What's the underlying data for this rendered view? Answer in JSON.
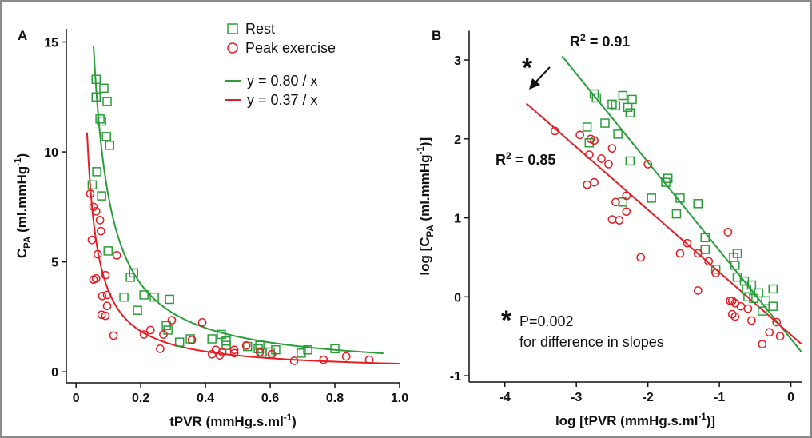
{
  "chart_data": [
    {
      "type": "scatter",
      "panel": "A",
      "xlabel": [
        {
          "text": "tPVR (mmHg.s.ml"
        },
        {
          "text": "-1",
          "shift": "sup"
        },
        {
          "text": ")"
        }
      ],
      "ylabel": [
        {
          "text": "C"
        },
        {
          "text": "PA",
          "shift": "sub"
        },
        {
          "text": " (ml.mmHg"
        },
        {
          "text": "-1",
          "shift": "sup"
        },
        {
          "text": ")"
        }
      ],
      "xlim": [
        -0.03,
        1.0
      ],
      "ylim": [
        -0.5,
        15.6
      ],
      "xticks": [
        0,
        0.2,
        0.4,
        0.6,
        0.8,
        {
          "value": 1,
          "label": "1.0"
        }
      ],
      "yticks": [
        0,
        5,
        10,
        15
      ],
      "series": [
        {
          "name": "Rest",
          "color": "#2a9d3a",
          "marker": "square",
          "x": [
            0.062,
            0.062,
            0.086,
            0.096,
            0.074,
            0.079,
            0.094,
            0.104,
            0.064,
            0.05,
            0.079,
            0.099,
            0.168,
            0.178,
            0.148,
            0.19,
            0.21,
            0.242,
            0.289,
            0.279,
            0.284,
            0.32,
            0.353,
            0.42,
            0.449,
            0.464,
            0.464,
            0.53,
            0.563,
            0.568,
            0.575,
            0.6,
            0.617,
            0.696,
            0.716,
            0.8
          ],
          "y": [
            13.3,
            12.5,
            12.9,
            12.3,
            11.5,
            11.4,
            10.7,
            10.3,
            9.1,
            8.5,
            8.0,
            5.5,
            4.3,
            4.5,
            3.4,
            2.8,
            3.5,
            3.4,
            3.3,
            2.1,
            1.9,
            1.35,
            1.5,
            1.5,
            1.7,
            1.4,
            1.2,
            1.15,
            1.05,
            1.2,
            0.9,
            0.9,
            1.0,
            0.85,
            1.0,
            1.05
          ]
        },
        {
          "name": "Peak exercise",
          "color": "#e31e24",
          "marker": "circle",
          "x": [
            0.044,
            0.054,
            0.062,
            0.049,
            0.074,
            0.077,
            0.054,
            0.062,
            0.067,
            0.091,
            0.081,
            0.096,
            0.096,
            0.079,
            0.091,
            0.116,
            0.126,
            0.21,
            0.23,
            0.26,
            0.27,
            0.296,
            0.358,
            0.39,
            0.42,
            0.432,
            0.444,
            0.452,
            0.489,
            0.489,
            0.526,
            0.568,
            0.605,
            0.674,
            0.765,
            0.835,
            0.906
          ],
          "y": [
            8.1,
            7.5,
            7.3,
            6.0,
            6.9,
            6.4,
            4.2,
            4.25,
            5.35,
            4.4,
            3.45,
            3.5,
            3.0,
            2.6,
            2.55,
            1.65,
            5.3,
            1.7,
            1.9,
            1.05,
            1.7,
            2.35,
            1.45,
            2.25,
            0.8,
            1.0,
            0.75,
            0.9,
            0.85,
            1.0,
            1.2,
            0.9,
            0.8,
            0.5,
            0.55,
            0.7,
            0.55
          ]
        }
      ],
      "fits": [
        {
          "label": "y = 0.80 / x",
          "color": "#2a9d3a",
          "a": 0.8,
          "x_range": [
            0.054,
            0.95
          ]
        },
        {
          "label": "y = 0.37 / x",
          "color": "#e31e24",
          "a": 0.37,
          "x_range": [
            0.034,
            1.0
          ]
        }
      ]
    },
    {
      "type": "scatter",
      "panel": "B",
      "xlabel": [
        {
          "text": "log [tPVR (mmHg.s.ml"
        },
        {
          "text": "-1",
          "shift": "sup"
        },
        {
          "text": ")]"
        }
      ],
      "ylabel": [
        {
          "text": "log [C"
        },
        {
          "text": "PA",
          "shift": "sub"
        },
        {
          "text": " (ml.mmHg"
        },
        {
          "text": "-1",
          "shift": "sup"
        },
        {
          "text": ")]"
        }
      ],
      "xlim": [
        -4.5,
        0.15
      ],
      "ylim": [
        -1.08,
        3.37
      ],
      "xticks": [
        -4,
        -3,
        -2,
        -1,
        0
      ],
      "yticks": [
        -1,
        0,
        1,
        2,
        3
      ],
      "series": [
        {
          "color": "#2a9d3a",
          "marker": "square",
          "x": [
            -2.75,
            -2.72,
            -2.5,
            -2.45,
            -2.35,
            -2.28,
            -2.22,
            -2.25,
            -2.6,
            -2.85,
            -2.82,
            -2.42,
            -2.25,
            -2.35,
            -1.95,
            -1.75,
            -1.72,
            -1.55,
            -1.6,
            -1.3,
            -1.2,
            -1.2,
            -1.05,
            -0.8,
            -0.78,
            -0.75,
            -0.75,
            -0.65,
            -0.62,
            -0.55,
            -0.6,
            -0.52,
            -0.45,
            -0.35,
            -0.4,
            -0.25,
            -0.25
          ],
          "y": [
            2.57,
            2.52,
            2.44,
            2.42,
            2.55,
            2.4,
            2.5,
            2.33,
            2.2,
            2.15,
            1.95,
            2.06,
            1.72,
            1.2,
            1.25,
            1.45,
            1.5,
            1.25,
            1.05,
            1.18,
            0.75,
            0.6,
            0.35,
            0.5,
            0.4,
            0.55,
            0.25,
            0.2,
            0.1,
            0.15,
            0.0,
            -0.02,
            0.05,
            -0.05,
            -0.18,
            0.1,
            -0.12
          ]
        },
        {
          "color": "#e31e24",
          "marker": "circle",
          "x": [
            -3.3,
            -2.95,
            -2.8,
            -2.75,
            -2.82,
            -2.85,
            -2.75,
            -2.65,
            -2.55,
            -2.5,
            -2.45,
            -2.5,
            -2.4,
            -2.3,
            -2.3,
            -2.1,
            -2.0,
            -1.55,
            -1.45,
            -1.3,
            -1.3,
            -1.15,
            -1.05,
            -0.88,
            -0.85,
            -0.82,
            -0.78,
            -0.82,
            -0.78,
            -0.7,
            -0.6,
            -0.55,
            -0.4,
            -0.3,
            -0.2,
            -0.15
          ],
          "y": [
            2.1,
            2.05,
            2.0,
            1.98,
            1.8,
            1.42,
            1.45,
            1.75,
            1.68,
            1.88,
            1.2,
            0.98,
            0.97,
            1.28,
            1.08,
            0.5,
            1.68,
            0.55,
            0.68,
            0.55,
            0.08,
            0.45,
            0.3,
            0.82,
            -0.05,
            -0.05,
            -0.08,
            -0.22,
            -0.25,
            -0.12,
            -0.15,
            -0.3,
            -0.6,
            -0.45,
            -0.32,
            -0.5
          ]
        }
      ],
      "lines": [
        {
          "color": "#2a9d3a",
          "x": [
            -3.2,
            0.15
          ],
          "y": [
            3.05,
            -0.7
          ]
        },
        {
          "color": "#e31e24",
          "x": [
            -3.7,
            0.15
          ],
          "y": [
            2.45,
            -0.6
          ]
        }
      ],
      "annotations": [
        {
          "color": "#2a9d3a",
          "text": [
            {
              "text": "R"
            },
            {
              "text": "2",
              "shift": "sup"
            },
            {
              "text": " = 0.91"
            }
          ]
        },
        {
          "color": "#e31e24",
          "text": [
            {
              "text": "R"
            },
            {
              "text": "2",
              "shift": "sup"
            },
            {
              "text": " = 0.85"
            }
          ]
        }
      ],
      "star": "*",
      "note": [
        "P=0.002",
        "for difference in slopes"
      ]
    }
  ]
}
